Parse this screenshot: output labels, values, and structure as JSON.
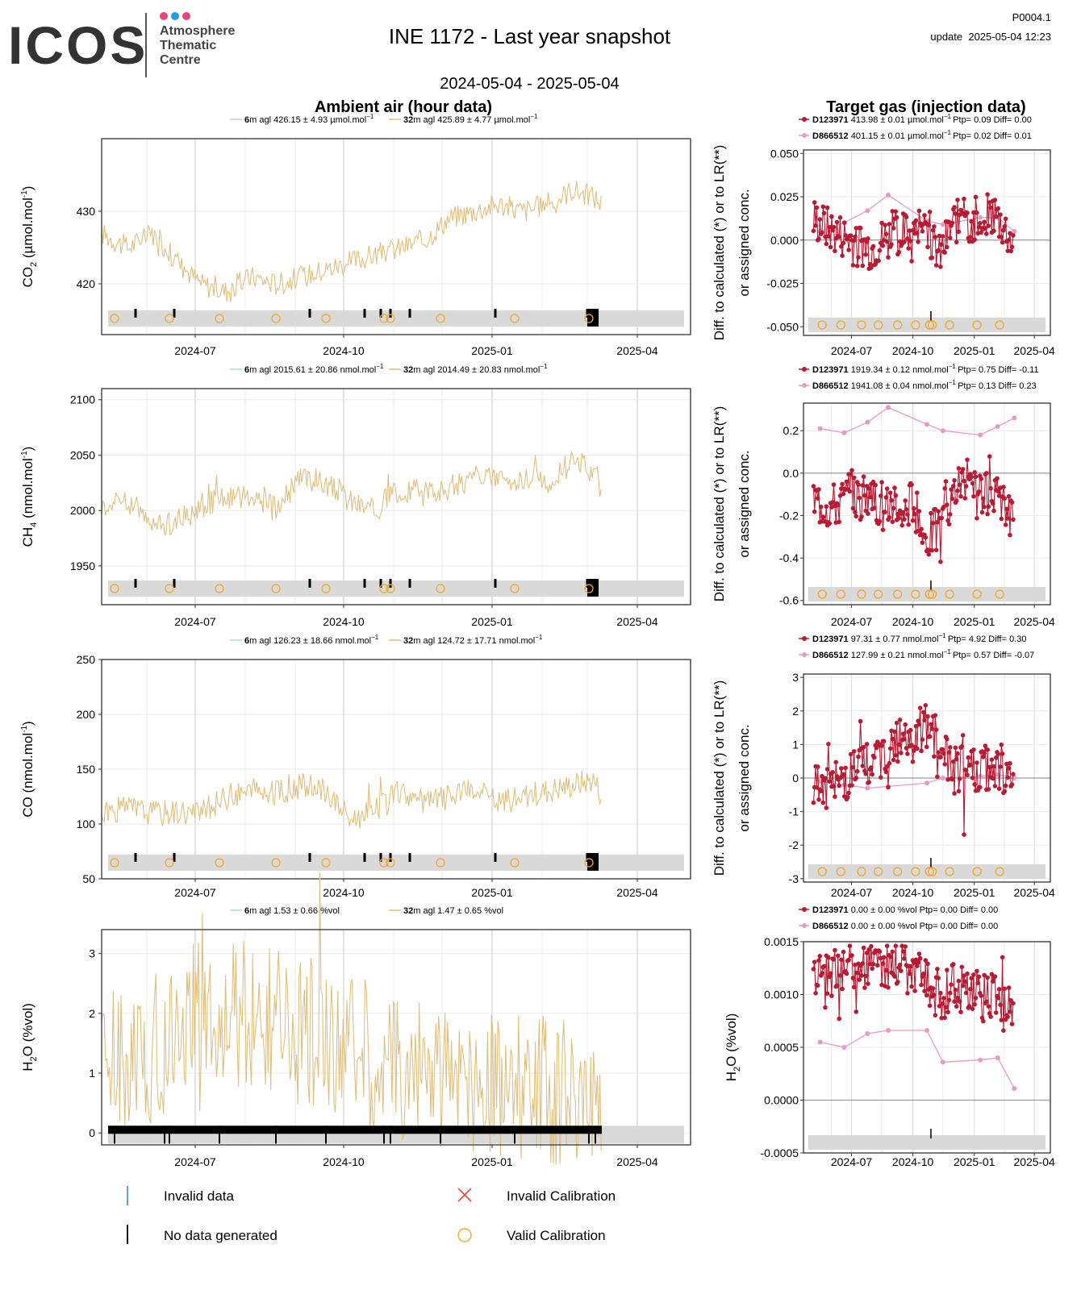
{
  "logo": {
    "wordmark": "ICOS",
    "line1": "Atmosphere",
    "line2": "Thematic",
    "line3": "Centre",
    "dot_colors": [
      "#e8457a",
      "#1ea0e6",
      "#e8457a"
    ]
  },
  "header": {
    "title": "INE 1172 - Last year snapshot",
    "date_range": "2024-05-04 - 2025-05-04",
    "product_id": "P0004.1",
    "update": "update  2025-05-04 12:23"
  },
  "sections": {
    "ambient": "Ambient air (hour data)",
    "target": "Target gas (injection data)"
  },
  "right_ylabel_line1": "Diff. to calculated (*) or to LR(**)",
  "right_ylabel_line2": "or assigned conc.",
  "x_ticks": [
    "2024-07",
    "2024-10",
    "2025-01",
    "2025-04"
  ],
  "colors": {
    "ambient_6m": "#a8ddd2",
    "ambient_32m": "#e0c07e",
    "target_1": "#b81b34",
    "target_2": "#e79ac8",
    "calib": "#f5a623",
    "invalid": "#2e7fd1",
    "strip": "#d9d9d9",
    "grid": "#ebebeb",
    "zero": "#9a9a9a"
  },
  "panels": [
    {
      "key": "co2",
      "ylabel_main": "CO",
      "ylabel_sub": "2",
      "ylabel_rest": " (µmol.mol",
      "ylabel_sup": "-1",
      "ylabel_end": ")",
      "legend": [
        {
          "height": "6",
          "text": "m agl 426.15 ± 4.93 µmol.mol",
          "sup": "−1"
        },
        {
          "height": "32",
          "text": "m agl 425.89 ± 4.77 µmol.mol",
          "sup": "−1"
        }
      ],
      "target_legend": [
        {
          "cyl": "D123971",
          "text": "413.98 ± 0.01 µmol.mol",
          "sup": "−1",
          "stats": "Ptp= 0.09 Diff= 0.00"
        },
        {
          "cyl": "D866512",
          "text": "401.15 ± 0.01 µmol.mol",
          "sup": "−1",
          "stats": "Ptp= 0.02 Diff= 0.01"
        }
      ]
    },
    {
      "key": "ch4",
      "ylabel_main": "CH",
      "ylabel_sub": "4",
      "ylabel_rest": " (nmol.mol",
      "ylabel_sup": "-1",
      "ylabel_end": ")",
      "legend": [
        {
          "height": "6",
          "text": "m agl 2015.61 ± 20.86 nmol.mol",
          "sup": "−1"
        },
        {
          "height": "32",
          "text": "m agl 2014.49 ± 20.83 nmol.mol",
          "sup": "−1"
        }
      ],
      "target_legend": [
        {
          "cyl": "D123971",
          "text": "1919.34 ± 0.12 nmol.mol",
          "sup": "−1",
          "stats": "Ptp= 0.75 Diff= -0.11"
        },
        {
          "cyl": "D866512",
          "text": "1941.08 ± 0.04 nmol.mol",
          "sup": "−1",
          "stats": "Ptp= 0.13 Diff= 0.23"
        }
      ]
    },
    {
      "key": "co",
      "ylabel_main": "CO (nmol.mol",
      "ylabel_sub": "",
      "ylabel_rest": "",
      "ylabel_sup": "-1",
      "ylabel_end": ")",
      "legend": [
        {
          "height": "6",
          "text": "m agl 126.23 ± 18.66 nmol.mol",
          "sup": "−1"
        },
        {
          "height": "32",
          "text": "m agl 124.72 ± 17.71 nmol.mol",
          "sup": "−1"
        }
      ],
      "target_legend": [
        {
          "cyl": "D123971",
          "text": "97.31 ± 0.77 nmol.mol",
          "sup": "−1",
          "stats": "Ptp= 4.92 Diff= 0.30"
        },
        {
          "cyl": "D866512",
          "text": "127.99 ± 0.21 nmol.mol",
          "sup": "−1",
          "stats": "Ptp= 0.57 Diff= -0.07"
        }
      ]
    },
    {
      "key": "h2o",
      "ylabel_main": "H",
      "ylabel_sub": "2",
      "ylabel_rest": "O (%vol)",
      "ylabel_sup": "",
      "ylabel_end": "",
      "right_ylabel": "H2O (%vol)",
      "legend": [
        {
          "height": "6",
          "text": "m agl 1.53 ± 0.66 %vol",
          "sup": ""
        },
        {
          "height": "32",
          "text": "m agl 1.47 ± 0.65 %vol",
          "sup": ""
        }
      ],
      "target_legend": [
        {
          "cyl": "D123971",
          "text": "0.00 ± 0.00 %vol",
          "sup": "",
          "stats": "Ptp= 0.00 Diff= 0.00"
        },
        {
          "cyl": "D866512",
          "text": "0.00 ± 0.00 %vol",
          "sup": "",
          "stats": "Ptp= 0.00 Diff= 0.00"
        }
      ]
    }
  ],
  "bottom_legend": {
    "invalid_data": "Invalid data",
    "no_data": "No data generated",
    "invalid_calibration": "Invalid Calibration",
    "valid_calibration": "Valid Calibration"
  },
  "chart_data": [
    {
      "type": "line",
      "panel": "co2-ambient",
      "xlim": [
        "2024-05-04",
        "2025-05-04"
      ],
      "ylim": [
        413,
        440
      ],
      "yticks": [
        420,
        430
      ],
      "series": [
        {
          "name": "32m agl",
          "x": [
            "2024-05-04",
            "2024-05-20",
            "2024-06-05",
            "2024-06-20",
            "2024-07-05",
            "2024-07-20",
            "2024-08-05",
            "2024-08-20",
            "2024-09-05",
            "2024-09-20",
            "2024-10-05",
            "2024-10-20",
            "2024-11-05",
            "2024-11-20",
            "2024-12-05",
            "2024-12-20",
            "2025-01-05",
            "2025-01-20",
            "2025-02-05",
            "2025-02-20",
            "2025-03-05",
            "2025-03-10"
          ],
          "y": [
            427,
            425,
            427,
            423,
            420,
            419,
            421,
            420,
            421,
            422,
            423,
            424,
            425,
            426,
            429,
            430,
            431,
            430,
            431,
            433,
            432,
            431
          ]
        }
      ],
      "calibrations": [
        "2024-05-12",
        "2024-06-15",
        "2024-07-16",
        "2024-08-20",
        "2024-09-20",
        "2024-10-26",
        "2024-10-30",
        "2024-11-30",
        "2025-01-15",
        "2025-03-02"
      ]
    },
    {
      "type": "line",
      "panel": "ch4-ambient",
      "xlim": [
        "2024-05-04",
        "2025-05-04"
      ],
      "ylim": [
        1915,
        2110
      ],
      "yticks": [
        1950,
        2000,
        2050,
        2100
      ],
      "series": [
        {
          "name": "32m agl",
          "x": [
            "2024-05-04",
            "2024-05-20",
            "2024-06-05",
            "2024-06-20",
            "2024-07-05",
            "2024-07-20",
            "2024-08-05",
            "2024-08-20",
            "2024-09-05",
            "2024-09-20",
            "2024-10-05",
            "2024-10-20",
            "2024-11-05",
            "2024-11-20",
            "2024-12-05",
            "2024-12-20",
            "2025-01-05",
            "2025-01-20",
            "2025-02-05",
            "2025-02-20",
            "2025-03-05",
            "2025-03-10"
          ],
          "y": [
            2005,
            2010,
            1985,
            1990,
            2005,
            2010,
            2015,
            2000,
            2030,
            2025,
            2010,
            2000,
            2020,
            2015,
            2020,
            2030,
            2025,
            2030,
            2025,
            2045,
            2035,
            2020
          ]
        }
      ],
      "calibrations": [
        "2024-05-12",
        "2024-06-15",
        "2024-07-16",
        "2024-08-20",
        "2024-09-20",
        "2024-10-26",
        "2024-10-30",
        "2024-11-30",
        "2025-01-15",
        "2025-03-02"
      ]
    },
    {
      "type": "line",
      "panel": "co-ambient",
      "xlim": [
        "2024-05-04",
        "2025-05-04"
      ],
      "ylim": [
        50,
        250
      ],
      "yticks": [
        50,
        100,
        150,
        200,
        250
      ],
      "series": [
        {
          "name": "32m agl",
          "x": [
            "2024-05-04",
            "2024-05-20",
            "2024-06-05",
            "2024-06-20",
            "2024-07-05",
            "2024-07-20",
            "2024-08-05",
            "2024-08-20",
            "2024-09-05",
            "2024-09-20",
            "2024-10-05",
            "2024-10-20",
            "2024-11-05",
            "2024-11-20",
            "2024-12-05",
            "2024-12-20",
            "2025-01-05",
            "2025-01-20",
            "2025-02-05",
            "2025-02-20",
            "2025-03-05",
            "2025-03-10"
          ],
          "y": [
            110,
            115,
            110,
            112,
            110,
            125,
            130,
            128,
            135,
            130,
            105,
            110,
            130,
            120,
            125,
            130,
            120,
            125,
            130,
            135,
            140,
            125
          ]
        }
      ],
      "calibrations": [
        "2024-05-12",
        "2024-06-15",
        "2024-07-16",
        "2024-08-20",
        "2024-09-20",
        "2024-10-26",
        "2024-10-30",
        "2024-11-30",
        "2025-01-15",
        "2025-03-02"
      ]
    },
    {
      "type": "line",
      "panel": "h2o-ambient",
      "xlim": [
        "2024-05-04",
        "2025-05-04"
      ],
      "ylim": [
        -0.2,
        3.4
      ],
      "yticks": [
        0,
        1,
        2,
        3
      ],
      "series": [
        {
          "name": "32m agl",
          "x": [
            "2024-05-04",
            "2024-05-20",
            "2024-06-05",
            "2024-06-20",
            "2024-07-05",
            "2024-07-20",
            "2024-08-05",
            "2024-08-20",
            "2024-09-05",
            "2024-09-20",
            "2024-10-05",
            "2024-10-20",
            "2024-11-05",
            "2024-11-20",
            "2024-12-05",
            "2024-12-20",
            "2025-01-05",
            "2025-01-20",
            "2025-02-05",
            "2025-02-20",
            "2025-03-05",
            "2025-03-10"
          ],
          "y": [
            1.3,
            1.1,
            1.4,
            1.8,
            2.0,
            2.1,
            1.9,
            1.8,
            1.7,
            1.6,
            1.6,
            1.2,
            1.1,
            1.0,
            0.9,
            0.9,
            0.8,
            0.8,
            0.7,
            0.7,
            0.6,
            0.5
          ]
        }
      ]
    },
    {
      "type": "scatter",
      "panel": "co2-target",
      "xlim": [
        "2024-04-20",
        "2025-04-25"
      ],
      "ylim": [
        -0.055,
        0.052
      ],
      "yticks": [
        -0.05,
        -0.025,
        0.0,
        0.025,
        0.05
      ],
      "series": [
        {
          "name": "D123971",
          "x": [
            "2024-05-05",
            "2024-06-01",
            "2024-07-01",
            "2024-08-01",
            "2024-09-01",
            "2024-10-01",
            "2024-10-20",
            "2024-11-10",
            "2024-12-01",
            "2025-01-01",
            "2025-02-01",
            "2025-03-01"
          ],
          "y": [
            0.012,
            0.005,
            0.0,
            -0.005,
            0.005,
            0.003,
            0.01,
            -0.01,
            0.01,
            0.012,
            0.015,
            -0.002
          ]
        },
        {
          "name": "D866512",
          "x": [
            "2024-05-15",
            "2024-06-20",
            "2024-07-25",
            "2024-08-25",
            "2024-10-22",
            "2024-11-15",
            "2025-01-10",
            "2025-02-05",
            "2025-03-02"
          ],
          "y": [
            0.005,
            0.01,
            0.017,
            0.026,
            0.011,
            0.009,
            0.013,
            0.013,
            0.005
          ]
        }
      ],
      "calibrations": [
        "2024-05-18",
        "2024-06-15",
        "2024-07-16",
        "2024-08-20",
        "2024-09-20",
        "2024-10-26",
        "2024-10-30",
        "2024-11-30",
        "2025-01-15",
        "2025-03-02"
      ]
    },
    {
      "type": "scatter",
      "panel": "ch4-target",
      "xlim": [
        "2024-04-20",
        "2025-04-25"
      ],
      "ylim": [
        -0.62,
        0.33
      ],
      "yticks": [
        -0.6,
        -0.4,
        -0.2,
        0.0,
        0.2
      ],
      "series": [
        {
          "name": "D123971",
          "x": [
            "2024-05-05",
            "2024-06-01",
            "2024-07-01",
            "2024-08-01",
            "2024-09-01",
            "2024-10-01",
            "2024-10-20",
            "2024-11-10",
            "2024-12-01",
            "2025-01-01",
            "2025-02-01",
            "2025-03-01"
          ],
          "y": [
            -0.12,
            -0.15,
            -0.1,
            -0.13,
            -0.12,
            -0.15,
            -0.3,
            -0.25,
            -0.05,
            -0.1,
            -0.12,
            -0.2
          ]
        },
        {
          "name": "D866512",
          "x": [
            "2024-05-15",
            "2024-06-20",
            "2024-07-25",
            "2024-08-25",
            "2024-10-22",
            "2024-11-15",
            "2025-01-10",
            "2025-02-05",
            "2025-03-02"
          ],
          "y": [
            0.21,
            0.19,
            0.24,
            0.31,
            0.23,
            0.2,
            0.18,
            0.22,
            0.26
          ]
        }
      ]
    },
    {
      "type": "scatter",
      "panel": "co-target",
      "xlim": [
        "2024-04-20",
        "2025-04-25"
      ],
      "ylim": [
        -3.1,
        3.1
      ],
      "yticks": [
        -3,
        -2,
        -1,
        0,
        1,
        2,
        3
      ],
      "series": [
        {
          "name": "D123971",
          "x": [
            "2024-05-05",
            "2024-06-01",
            "2024-07-01",
            "2024-08-01",
            "2024-09-01",
            "2024-10-01",
            "2024-10-20",
            "2024-11-10",
            "2024-12-01",
            "2025-01-01",
            "2025-02-01",
            "2025-03-01"
          ],
          "y": [
            -0.4,
            -0.3,
            0.2,
            0.5,
            1.0,
            1.2,
            1.5,
            1.0,
            0.2,
            0.3,
            0.4,
            0.1
          ]
        },
        {
          "name": "D866512",
          "x": [
            "2024-05-15",
            "2024-06-20",
            "2024-07-25",
            "2024-08-25",
            "2024-10-22",
            "2024-11-15",
            "2025-01-10",
            "2025-02-05",
            "2025-03-02"
          ],
          "y": [
            -0.1,
            -0.2,
            -0.3,
            -0.25,
            -0.15,
            0.0,
            0.05,
            0.1,
            0.0
          ]
        }
      ]
    },
    {
      "type": "scatter",
      "panel": "h2o-target",
      "xlim": [
        "2024-04-20",
        "2025-04-25"
      ],
      "ylim": [
        -0.0005,
        0.0015
      ],
      "yticks": [
        -0.0005,
        0.0,
        0.0005,
        0.001,
        0.0015
      ],
      "series": [
        {
          "name": "D123971",
          "x": [
            "2024-05-05",
            "2024-06-01",
            "2024-07-01",
            "2024-08-01",
            "2024-09-01",
            "2024-10-01",
            "2024-10-20",
            "2024-11-10",
            "2024-12-01",
            "2025-01-01",
            "2025-02-01",
            "2025-03-01"
          ],
          "y": [
            0.0011,
            0.0012,
            0.0013,
            0.00125,
            0.0013,
            0.0012,
            0.0011,
            0.001,
            0.00105,
            0.001,
            0.00095,
            0.0008
          ]
        },
        {
          "name": "D866512",
          "x": [
            "2024-05-15",
            "2024-06-20",
            "2024-07-25",
            "2024-08-25",
            "2024-10-22",
            "2024-11-15",
            "2025-01-10",
            "2025-02-05",
            "2025-03-02"
          ],
          "y": [
            0.00055,
            0.0005,
            0.00063,
            0.00066,
            0.00066,
            0.00036,
            0.00038,
            0.0004,
            0.00011
          ]
        }
      ]
    }
  ]
}
